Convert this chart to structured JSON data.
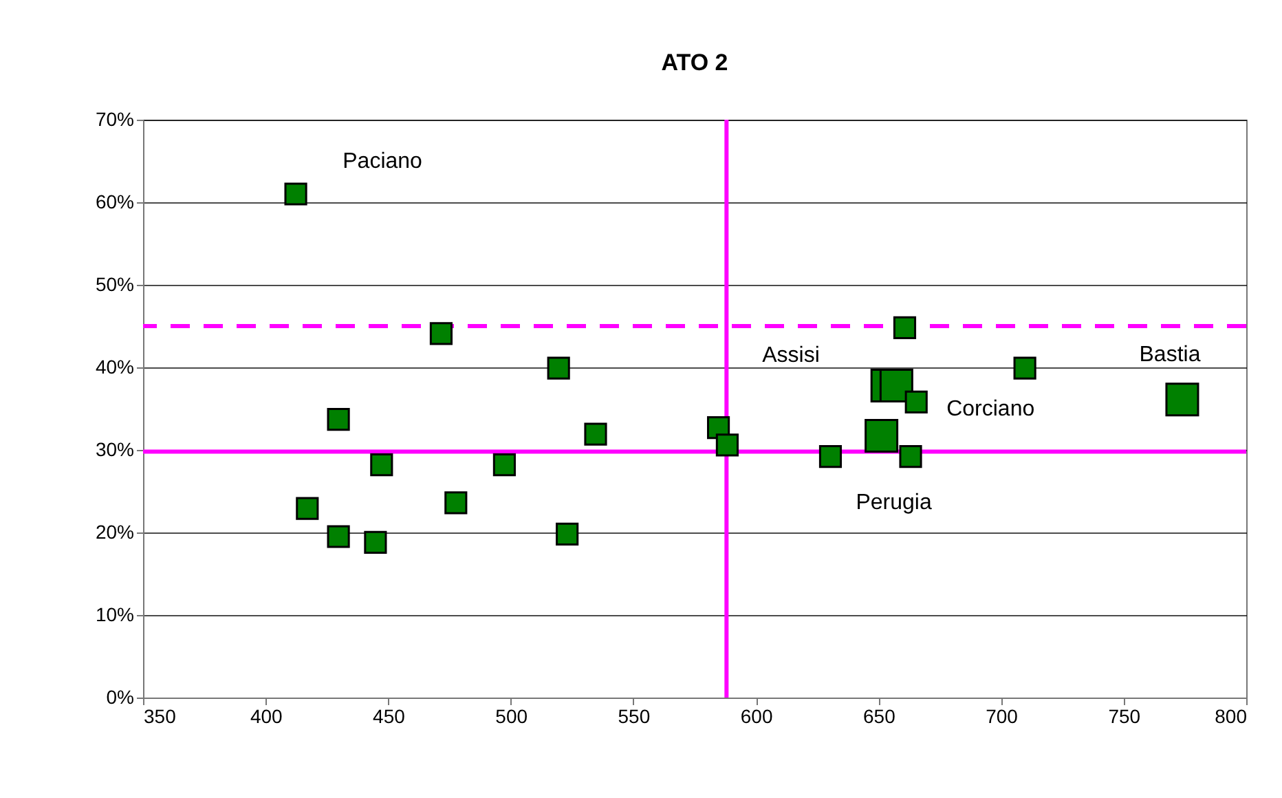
{
  "chart_data": {
    "type": "bubble",
    "title": "ATO 2",
    "x": [
      412.3,
      429.7,
      471.6,
      519.5,
      534.6,
      584.7,
      588.3,
      447.3,
      497.4,
      417.0,
      477.6,
      429.7,
      444.8,
      523.0,
      660.7,
      709.7,
      653.6,
      657.3,
      665.4,
      773.9,
      651.2,
      630.4,
      663.1
    ],
    "series": [
      {
        "color": "#008000",
        "values": [
          61.0,
          33.7,
          44.1,
          39.9,
          31.9,
          32.7,
          30.6,
          28.2,
          28.2,
          22.9,
          23.6,
          19.5,
          18.8,
          19.8,
          44.8,
          39.9,
          37.8,
          37.8,
          35.8,
          36.1,
          31.7,
          29.2,
          29.2
        ],
        "sizes": [
          0.43,
          0.43,
          0.43,
          0.43,
          0.43,
          0.43,
          0.43,
          0.43,
          0.43,
          0.43,
          0.43,
          0.43,
          0.43,
          0.43,
          0.43,
          0.43,
          1,
          1,
          0.43,
          1,
          1,
          0.43,
          0.43
        ]
      }
    ],
    "marker": "square",
    "xlim": [
      350,
      800
    ],
    "xticks": [
      350,
      400,
      450,
      500,
      550,
      600,
      650,
      700,
      750,
      800
    ],
    "ylim": [
      0,
      70
    ],
    "yticks": [
      {
        "value": 0,
        "label": "0%"
      },
      {
        "value": 10,
        "label": "10%"
      },
      {
        "value": 20,
        "label": "20%"
      },
      {
        "value": 30,
        "label": "30%"
      },
      {
        "value": 40,
        "label": "40%"
      },
      {
        "value": 50,
        "label": "50%"
      },
      {
        "value": 60,
        "label": "60%"
      },
      {
        "value": 70,
        "label": "70%"
      }
    ],
    "grid": "y",
    "ref_lines": [
      {
        "axis": "x",
        "value": 588,
        "color": "#ff00ff",
        "line_style": "solid"
      },
      {
        "axis": "y",
        "value": 29.8,
        "color": "#ff00ff",
        "line_style": "solid"
      },
      {
        "axis": "y",
        "value": 45,
        "color": "#ff00ff",
        "line_style": "dashed"
      }
    ],
    "annotations": [
      {
        "text": "Paciano",
        "x": 412.3,
        "y": 61.0
      },
      "Assisi",
      {
        "text": "Corciano",
        "x": 665.4,
        "y": 35.8
      },
      {
        "text": "Bastia",
        "x": 773.9,
        "y": 36.1
      },
      {
        "text": "Perugia",
        "x": 651.2,
        "y": 31.7
      }
    ]
  }
}
